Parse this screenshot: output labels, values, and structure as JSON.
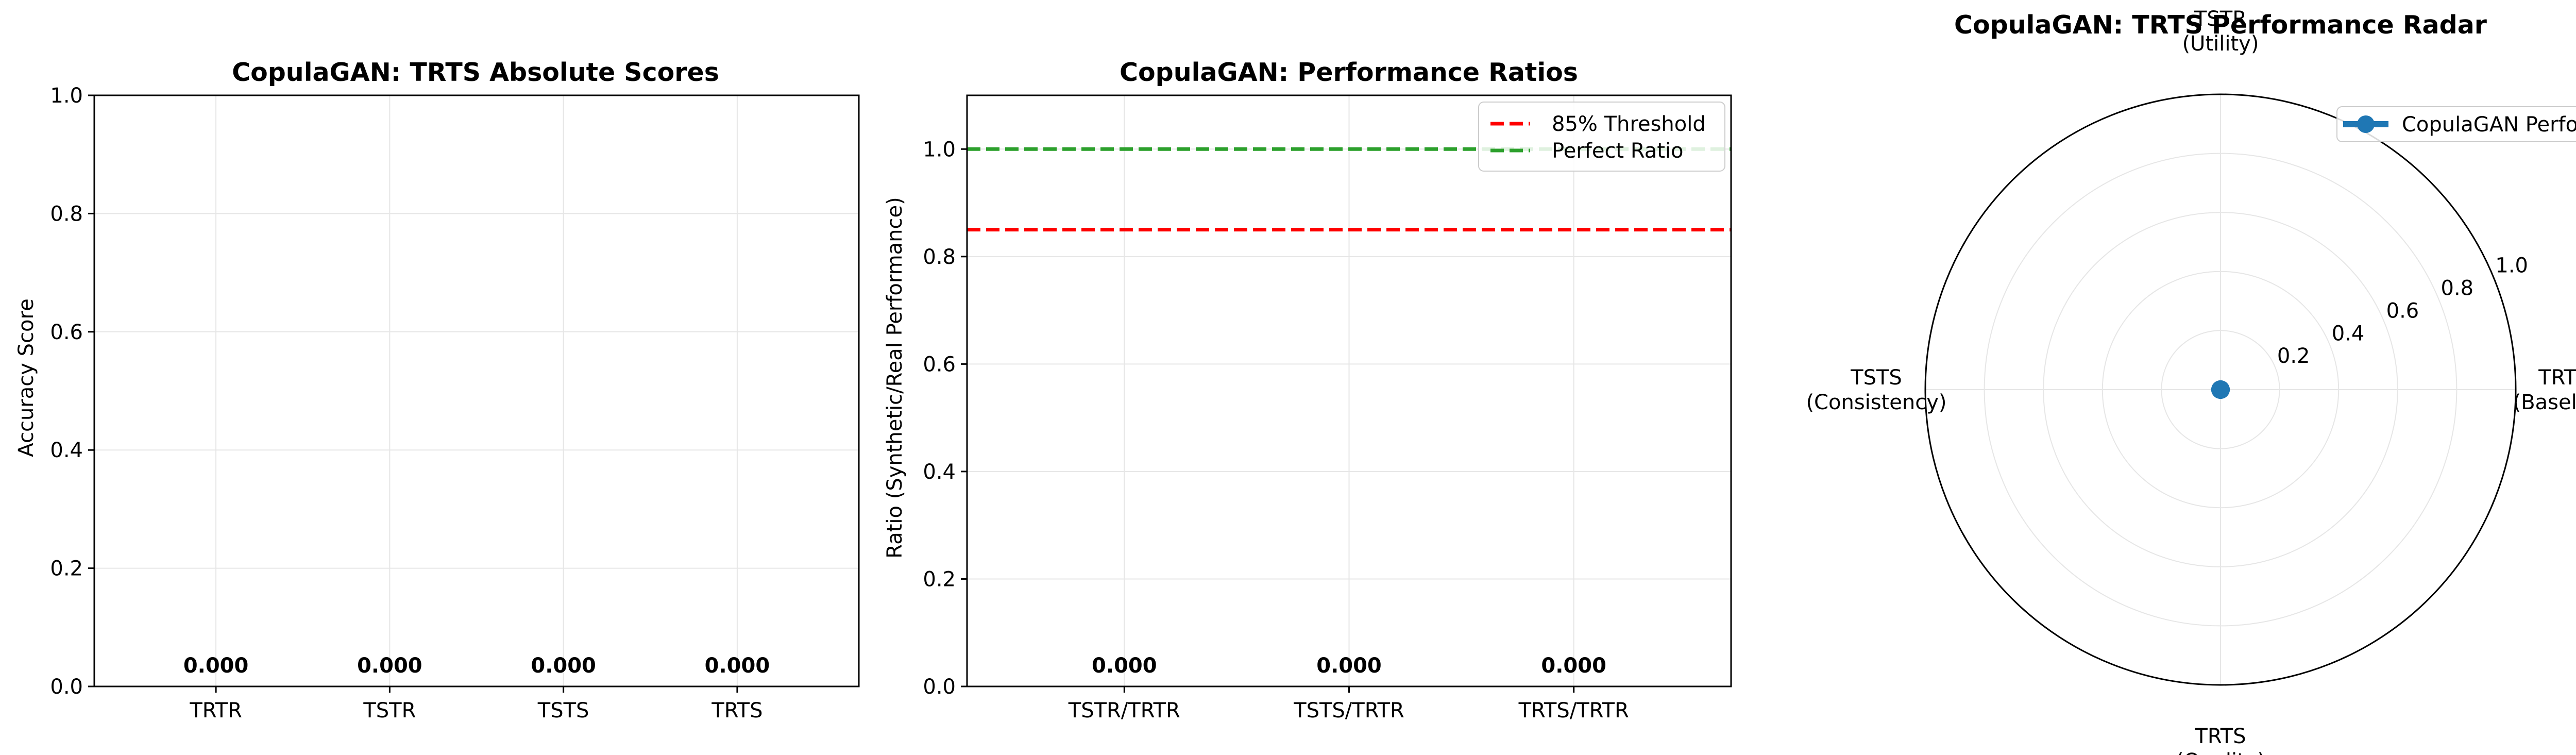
{
  "chart_data": [
    {
      "type": "bar",
      "title": "CopulaGAN: TRTS Absolute Scores",
      "xlabel": "",
      "ylabel": "Accuracy Score",
      "categories": [
        "TRTR",
        "TSTR",
        "TSTS",
        "TRTS"
      ],
      "values": [
        0.0,
        0.0,
        0.0,
        0.0
      ],
      "data_labels": [
        "0.000",
        "0.000",
        "0.000",
        "0.000"
      ],
      "ylim": [
        0,
        1.0
      ],
      "yticks": [
        0.0,
        0.2,
        0.4,
        0.6,
        0.8,
        1.0
      ],
      "ytick_labels": [
        "0.0",
        "0.2",
        "0.4",
        "0.6",
        "0.8",
        "1.0"
      ],
      "grid": true
    },
    {
      "type": "bar",
      "title": "CopulaGAN: Performance Ratios",
      "xlabel": "",
      "ylabel": "Ratio (Synthetic/Real Performance)",
      "categories": [
        "TSTR/TRTR",
        "TSTS/TRTR",
        "TRTS/TRTR"
      ],
      "values": [
        0.0,
        0.0,
        0.0
      ],
      "data_labels": [
        "0.000",
        "0.000",
        "0.000"
      ],
      "ylim": [
        0,
        1.1
      ],
      "yticks": [
        0.0,
        0.2,
        0.4,
        0.6,
        0.8,
        1.0
      ],
      "ytick_labels": [
        "0.0",
        "0.2",
        "0.4",
        "0.6",
        "0.8",
        "1.0"
      ],
      "reference_lines": [
        {
          "name": "85% Threshold",
          "y": 0.85,
          "color": "#ff0000",
          "style": "dashed"
        },
        {
          "name": "Perfect Ratio",
          "y": 1.0,
          "color": "#2ca02c",
          "style": "dashed"
        }
      ],
      "legend_position": "top-right",
      "grid": true
    },
    {
      "type": "radar",
      "title": "CopulaGAN: TRTS Performance Radar",
      "axes": [
        {
          "line1": "TRTR",
          "line2": "(Baseline)"
        },
        {
          "line1": "TSTR",
          "line2": "(Utility)"
        },
        {
          "line1": "TSTS",
          "line2": "(Consistency)"
        },
        {
          "line1": "TRTS",
          "line2": "(Quality)"
        }
      ],
      "series": [
        {
          "name": "CopulaGAN Performance",
          "values": [
            0.0,
            0.0,
            0.0,
            0.0
          ],
          "color": "#1f77b4"
        }
      ],
      "rlim": [
        0,
        1.0
      ],
      "rticks": [
        0.2,
        0.4,
        0.6,
        0.8,
        1.0
      ],
      "rtick_labels": [
        "0.2",
        "0.4",
        "0.6",
        "0.8",
        "1.0"
      ],
      "legend_position": "top-right",
      "grid": true
    }
  ]
}
